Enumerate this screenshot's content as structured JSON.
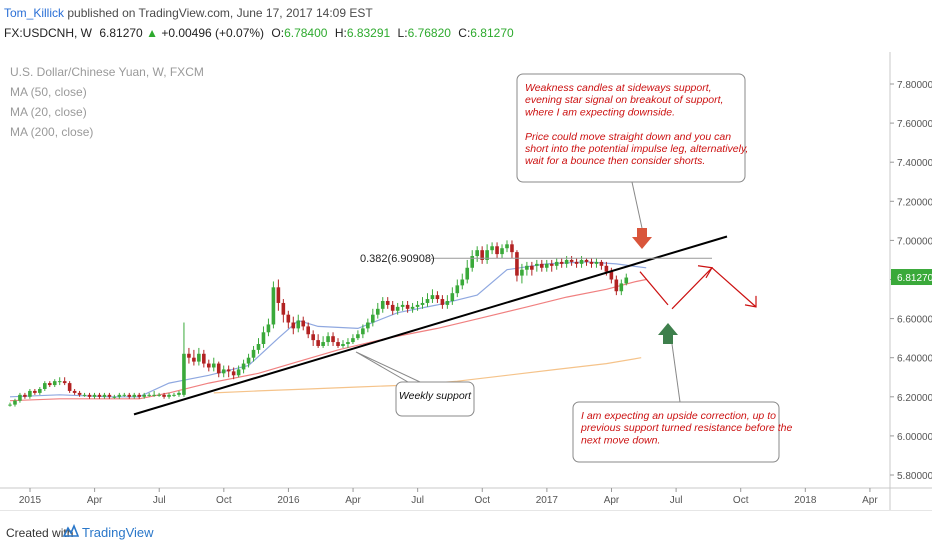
{
  "header": {
    "author": "Tom_Killick",
    "published": "published on TradingView.com, June 17, 2017 14:09 EST",
    "symbol": "FX:USDCNH, W",
    "last": "6.81270",
    "change_arrow": "▲",
    "change": "+0.00496 (+0.07%)",
    "o_label": "O:",
    "o_val": "6.78400",
    "h_label": "H:",
    "h_val": "6.83291",
    "l_label": "L:",
    "l_val": "6.76820",
    "c_label": "C:",
    "c_val": "6.81270"
  },
  "legend": {
    "title": "U.S. Dollar/Chinese Yuan, W, FXCM",
    "ma50": "MA (50, close)",
    "ma20": "MA (20, close)",
    "ma200": "MA (200, close)"
  },
  "footer": {
    "created": "Created with",
    "brand": "TradingView",
    "logo_icon": "tradingview-logo-icon"
  },
  "chart_data": {
    "type": "candlestick",
    "y_ticks": [
      "7.80000",
      "7.60000",
      "7.40000",
      "7.20000",
      "7.00000",
      "6.80000",
      "6.60000",
      "6.40000",
      "6.20000",
      "6.00000",
      "5.80000"
    ],
    "ylim": [
      5.74,
      7.9
    ],
    "x_ticks": [
      "2015",
      "Apr",
      "Jul",
      "Oct",
      "2016",
      "Apr",
      "Jul",
      "Oct",
      "2017",
      "Apr",
      "Jul",
      "Oct",
      "2018",
      "Apr"
    ],
    "x_tick_weeks": [
      0,
      13,
      26,
      39,
      52,
      65,
      78,
      91,
      104,
      117,
      130,
      143,
      156,
      169
    ],
    "last_price_label": "6.81270",
    "fib_label": "0.382(6.90908)",
    "fib_level": 6.909,
    "annotations": {
      "top": "Weakness candles at sideways support,\nevening star signal on breakout of support,\nwhere I am expecting downside.\n\nPrice could move straight down and you can\nshort into the potential impulse leg, alternatively,\nwait for a bounce then consider shorts.",
      "weekly": "Weekly support",
      "bottom": "I am expecting an upside correction, up to\nprevious support turned resistance before the\nnext move down."
    },
    "colors": {
      "up": "#3aa93a",
      "down": "#b22222",
      "ma20": "#8fa8e0",
      "ma50": "#f08080",
      "ma200": "#f5c38a",
      "annotation_text": "#cc1111",
      "arrow_down": "#d9553b",
      "arrow_up": "#3e7f4c"
    },
    "series": [
      {
        "name": "MA (20, close)",
        "values": [
          [
            0,
            6.2
          ],
          [
            10,
            6.21
          ],
          [
            20,
            6.2
          ],
          [
            26,
            6.2
          ],
          [
            32,
            6.27
          ],
          [
            40,
            6.31
          ],
          [
            48,
            6.36
          ],
          [
            54,
            6.5
          ],
          [
            58,
            6.59
          ],
          [
            62,
            6.56
          ],
          [
            70,
            6.55
          ],
          [
            78,
            6.63
          ],
          [
            86,
            6.67
          ],
          [
            94,
            6.72
          ],
          [
            100,
            6.85
          ],
          [
            108,
            6.88
          ],
          [
            116,
            6.89
          ],
          [
            122,
            6.88
          ],
          [
            128,
            6.86
          ]
        ]
      },
      {
        "name": "MA (50, close)",
        "values": [
          [
            0,
            6.18
          ],
          [
            10,
            6.19
          ],
          [
            20,
            6.19
          ],
          [
            26,
            6.19
          ],
          [
            32,
            6.22
          ],
          [
            40,
            6.27
          ],
          [
            50,
            6.32
          ],
          [
            58,
            6.38
          ],
          [
            66,
            6.44
          ],
          [
            76,
            6.5
          ],
          [
            86,
            6.55
          ],
          [
            96,
            6.61
          ],
          [
            104,
            6.66
          ],
          [
            112,
            6.71
          ],
          [
            120,
            6.75
          ],
          [
            126,
            6.79
          ],
          [
            128,
            6.8
          ]
        ]
      },
      {
        "name": "MA (200, close)",
        "values": [
          [
            41,
            6.22
          ],
          [
            50,
            6.23
          ],
          [
            60,
            6.24
          ],
          [
            70,
            6.25
          ],
          [
            80,
            6.26
          ],
          [
            90,
            6.28
          ],
          [
            100,
            6.31
          ],
          [
            110,
            6.34
          ],
          [
            120,
            6.37
          ],
          [
            127,
            6.4
          ]
        ]
      }
    ],
    "candles": [
      [
        6.16,
        6.16,
        6.15,
        6.17
      ],
      [
        6.16,
        6.18,
        6.15,
        6.19
      ],
      [
        6.18,
        6.21,
        6.17,
        6.22
      ],
      [
        6.21,
        6.2,
        6.19,
        6.22
      ],
      [
        6.2,
        6.23,
        6.19,
        6.24
      ],
      [
        6.23,
        6.22,
        6.21,
        6.24
      ],
      [
        6.22,
        6.24,
        6.21,
        6.25
      ],
      [
        6.24,
        6.27,
        6.23,
        6.28
      ],
      [
        6.27,
        6.26,
        6.25,
        6.28
      ],
      [
        6.26,
        6.28,
        6.25,
        6.29
      ],
      [
        6.28,
        6.28,
        6.26,
        6.3
      ],
      [
        6.28,
        6.27,
        6.26,
        6.3
      ],
      [
        6.27,
        6.23,
        6.22,
        6.28
      ],
      [
        6.23,
        6.22,
        6.21,
        6.24
      ],
      [
        6.22,
        6.21,
        6.2,
        6.23
      ],
      [
        6.21,
        6.21,
        6.2,
        6.22
      ],
      [
        6.21,
        6.2,
        6.19,
        6.22
      ],
      [
        6.2,
        6.21,
        6.19,
        6.22
      ],
      [
        6.21,
        6.2,
        6.19,
        6.22
      ],
      [
        6.2,
        6.21,
        6.19,
        6.22
      ],
      [
        6.21,
        6.2,
        6.19,
        6.22
      ],
      [
        6.2,
        6.2,
        6.19,
        6.21
      ],
      [
        6.2,
        6.21,
        6.19,
        6.22
      ],
      [
        6.21,
        6.21,
        6.2,
        6.22
      ],
      [
        6.21,
        6.2,
        6.19,
        6.22
      ],
      [
        6.2,
        6.21,
        6.19,
        6.22
      ],
      [
        6.21,
        6.2,
        6.19,
        6.22
      ],
      [
        6.2,
        6.21,
        6.19,
        6.22
      ],
      [
        6.21,
        6.21,
        6.2,
        6.22
      ],
      [
        6.21,
        6.21,
        6.2,
        6.23
      ],
      [
        6.21,
        6.21,
        6.2,
        6.22
      ],
      [
        6.21,
        6.2,
        6.19,
        6.22
      ],
      [
        6.2,
        6.21,
        6.19,
        6.22
      ],
      [
        6.21,
        6.21,
        6.2,
        6.22
      ],
      [
        6.21,
        6.22,
        6.2,
        6.23
      ],
      [
        6.21,
        6.42,
        6.2,
        6.58
      ],
      [
        6.42,
        6.4,
        6.37,
        6.45
      ],
      [
        6.4,
        6.38,
        6.36,
        6.44
      ],
      [
        6.38,
        6.42,
        6.36,
        6.45
      ],
      [
        6.42,
        6.37,
        6.35,
        6.44
      ],
      [
        6.37,
        6.35,
        6.33,
        6.39
      ],
      [
        6.35,
        6.37,
        6.33,
        6.4
      ],
      [
        6.37,
        6.32,
        6.3,
        6.38
      ],
      [
        6.32,
        6.34,
        6.3,
        6.36
      ],
      [
        6.34,
        6.33,
        6.3,
        6.36
      ],
      [
        6.33,
        6.31,
        6.29,
        6.35
      ],
      [
        6.31,
        6.34,
        6.3,
        6.36
      ],
      [
        6.34,
        6.37,
        6.32,
        6.39
      ],
      [
        6.37,
        6.4,
        6.35,
        6.42
      ],
      [
        6.4,
        6.44,
        6.38,
        6.46
      ],
      [
        6.44,
        6.47,
        6.42,
        6.5
      ],
      [
        6.47,
        6.53,
        6.45,
        6.56
      ],
      [
        6.53,
        6.57,
        6.51,
        6.6
      ],
      [
        6.57,
        6.76,
        6.55,
        6.79
      ],
      [
        6.76,
        6.68,
        6.64,
        6.8
      ],
      [
        6.68,
        6.62,
        6.58,
        6.7
      ],
      [
        6.62,
        6.58,
        6.55,
        6.64
      ],
      [
        6.58,
        6.55,
        6.52,
        6.61
      ],
      [
        6.55,
        6.59,
        6.53,
        6.62
      ],
      [
        6.59,
        6.56,
        6.54,
        6.61
      ],
      [
        6.56,
        6.52,
        6.5,
        6.58
      ],
      [
        6.52,
        6.49,
        6.46,
        6.54
      ],
      [
        6.49,
        6.46,
        6.45,
        6.52
      ],
      [
        6.46,
        6.48,
        6.45,
        6.51
      ],
      [
        6.48,
        6.51,
        6.46,
        6.53
      ],
      [
        6.51,
        6.48,
        6.46,
        6.53
      ],
      [
        6.48,
        6.46,
        6.45,
        6.5
      ],
      [
        6.46,
        6.47,
        6.45,
        6.49
      ],
      [
        6.47,
        6.48,
        6.45,
        6.5
      ],
      [
        6.48,
        6.5,
        6.47,
        6.52
      ],
      [
        6.5,
        6.52,
        6.49,
        6.54
      ],
      [
        6.52,
        6.55,
        6.5,
        6.57
      ],
      [
        6.55,
        6.58,
        6.53,
        6.6
      ],
      [
        6.58,
        6.62,
        6.56,
        6.65
      ],
      [
        6.62,
        6.65,
        6.6,
        6.68
      ],
      [
        6.65,
        6.69,
        6.63,
        6.71
      ],
      [
        6.69,
        6.67,
        6.65,
        6.71
      ],
      [
        6.67,
        6.64,
        6.62,
        6.69
      ],
      [
        6.64,
        6.66,
        6.62,
        6.68
      ],
      [
        6.66,
        6.67,
        6.64,
        6.69
      ],
      [
        6.67,
        6.65,
        6.63,
        6.69
      ],
      [
        6.65,
        6.66,
        6.63,
        6.68
      ],
      [
        6.66,
        6.67,
        6.64,
        6.69
      ],
      [
        6.67,
        6.68,
        6.65,
        6.71
      ],
      [
        6.68,
        6.7,
        6.66,
        6.73
      ],
      [
        6.7,
        6.72,
        6.68,
        6.75
      ],
      [
        6.72,
        6.7,
        6.68,
        6.74
      ],
      [
        6.7,
        6.67,
        6.65,
        6.72
      ],
      [
        6.67,
        6.69,
        6.65,
        6.72
      ],
      [
        6.69,
        6.73,
        6.67,
        6.76
      ],
      [
        6.73,
        6.77,
        6.71,
        6.8
      ],
      [
        6.77,
        6.8,
        6.75,
        6.83
      ],
      [
        6.8,
        6.86,
        6.78,
        6.9
      ],
      [
        6.86,
        6.92,
        6.84,
        6.95
      ],
      [
        6.92,
        6.95,
        6.89,
        6.97
      ],
      [
        6.95,
        6.9,
        6.88,
        6.97
      ],
      [
        6.9,
        6.95,
        6.88,
        6.98
      ],
      [
        6.95,
        6.97,
        6.93,
        6.99
      ],
      [
        6.97,
        6.93,
        6.91,
        6.99
      ],
      [
        6.93,
        6.96,
        6.91,
        6.98
      ],
      [
        6.96,
        6.98,
        6.94,
        7.0
      ],
      [
        6.98,
        6.94,
        6.91,
        7.0
      ],
      [
        6.94,
        6.82,
        6.79,
        6.95
      ],
      [
        6.82,
        6.85,
        6.78,
        6.88
      ],
      [
        6.85,
        6.87,
        6.82,
        6.89
      ],
      [
        6.87,
        6.85,
        6.82,
        6.89
      ],
      [
        6.87,
        6.88,
        6.84,
        6.9
      ],
      [
        6.88,
        6.86,
        6.84,
        6.9
      ],
      [
        6.86,
        6.88,
        6.84,
        6.9
      ],
      [
        6.88,
        6.87,
        6.84,
        6.9
      ],
      [
        6.87,
        6.89,
        6.85,
        6.91
      ],
      [
        6.89,
        6.88,
        6.86,
        6.91
      ],
      [
        6.88,
        6.9,
        6.86,
        6.92
      ],
      [
        6.9,
        6.89,
        6.87,
        6.92
      ],
      [
        6.89,
        6.88,
        6.86,
        6.91
      ],
      [
        6.88,
        6.9,
        6.86,
        6.92
      ],
      [
        6.9,
        6.89,
        6.87,
        6.91
      ],
      [
        6.89,
        6.88,
        6.86,
        6.91
      ],
      [
        6.88,
        6.89,
        6.86,
        6.91
      ],
      [
        6.89,
        6.87,
        6.85,
        6.9
      ],
      [
        6.87,
        6.84,
        6.82,
        6.89
      ],
      [
        6.84,
        6.8,
        6.78,
        6.86
      ],
      [
        6.8,
        6.74,
        6.72,
        6.82
      ],
      [
        6.74,
        6.78,
        6.72,
        6.8
      ],
      [
        6.78,
        6.81,
        6.77,
        6.83
      ]
    ]
  }
}
